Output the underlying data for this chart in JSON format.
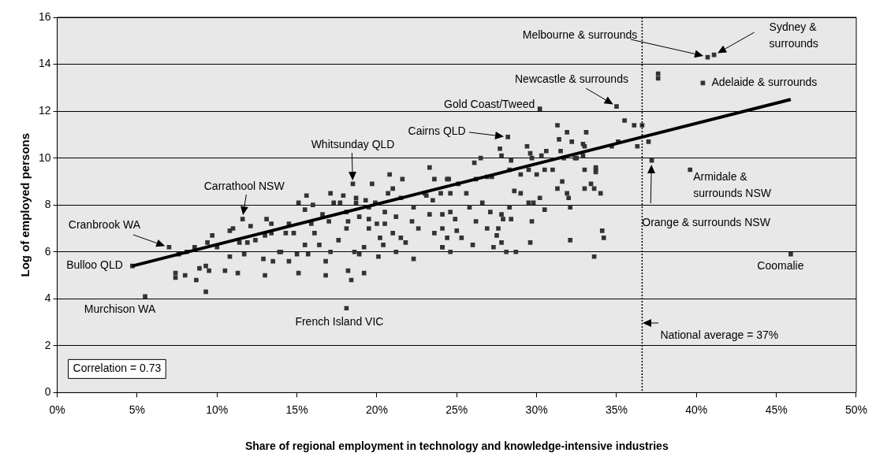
{
  "chart_data": {
    "type": "scatter",
    "xlabel": "Share of regional employment in technology and knowledge-intensive industries",
    "ylabel": "Log of employed persons",
    "xlim": [
      0,
      50
    ],
    "ylim": [
      0,
      16
    ],
    "xticks": [
      {
        "value": 0,
        "label": "0%"
      },
      {
        "value": 5,
        "label": "5%"
      },
      {
        "value": 10,
        "label": "10%"
      },
      {
        "value": 15,
        "label": "15%"
      },
      {
        "value": 20,
        "label": "20%"
      },
      {
        "value": 25,
        "label": "25%"
      },
      {
        "value": 30,
        "label": "30%"
      },
      {
        "value": 35,
        "label": "35%"
      },
      {
        "value": 40,
        "label": "40%"
      },
      {
        "value": 45,
        "label": "45%"
      },
      {
        "value": 50,
        "label": "50%"
      }
    ],
    "yticks": [
      0,
      2,
      4,
      6,
      8,
      10,
      12,
      14,
      16
    ],
    "grid": "y",
    "legend": false,
    "marker": "square",
    "series": [
      {
        "type": "scatter",
        "color": "#333333",
        "x": [
          4.7,
          5.5,
          7.0,
          11.6,
          18.5,
          18.1,
          28.2,
          30.2,
          35.0,
          40.7,
          41.1,
          40.4,
          37.6,
          37.6,
          39.6,
          37.2,
          45.9,
          36.1,
          36.6,
          35.5,
          36.3,
          37.0,
          35.1,
          34.7,
          7.6,
          8.1,
          8.6,
          9.4,
          9.7,
          10.0,
          10.8,
          11.0,
          12.1,
          13.1,
          13.4,
          13.4,
          11.4,
          11.9,
          12.4,
          13.0,
          10.8,
          11.7,
          12.9,
          13.5,
          13.9,
          7.4,
          7.4,
          8.0,
          8.7,
          8.9,
          9.3,
          9.5,
          9.3,
          10.5,
          11.3,
          13.0,
          14.5,
          15.1,
          15.6,
          16.0,
          15.5,
          14.3,
          14.8,
          14.5,
          14.0,
          15.0,
          15.7,
          15.5,
          15.1,
          16.4,
          16.8,
          17.1,
          16.8,
          17.1,
          17.3,
          16.6,
          17.0,
          15.9,
          16.1,
          17.6,
          17.9,
          17.7,
          18.1,
          18.2,
          18.1,
          18.2,
          18.4,
          19.2,
          18.9,
          18.6,
          19.2,
          18.7,
          18.7,
          19.3,
          19.7,
          19.9,
          19.5,
          18.9,
          19.5,
          20.0,
          19.5,
          20.2,
          20.1,
          20.8,
          21.0,
          20.7,
          21.6,
          21.5,
          20.5,
          21.2,
          20.5,
          21.0,
          21.5,
          20.4,
          21.2,
          22.3,
          22.3,
          22.2,
          22.6,
          21.8,
          23.3,
          23.6,
          23.0,
          23.5,
          24.0,
          24.4,
          23.3,
          24.1,
          23.6,
          24.1,
          24.6,
          24.4,
          24.9,
          24.6,
          23.1,
          24.5,
          25.1,
          25.6,
          26.2,
          26.1,
          26.5,
          26.9,
          27.2,
          27.7,
          27.8,
          28.4,
          28.3,
          29.0,
          29.4,
          29.6,
          29.7,
          30.3,
          30.6,
          29.5,
          30.0,
          30.5,
          31.0,
          31.3,
          31.4,
          31.5,
          31.9,
          32.2,
          31.7,
          32.4,
          33.1,
          33.0,
          32.9,
          33.0,
          33.7,
          31.6,
          31.3,
          31.9,
          32.0,
          32.1,
          33.0,
          33.4,
          33.6,
          34.0,
          30.5,
          30.2,
          29.8,
          29.5,
          29.0,
          28.6,
          28.3,
          28.4,
          27.8,
          27.9,
          27.1,
          27.6,
          27.5,
          26.9,
          29.7,
          29.6,
          32.1,
          34.1,
          34.2,
          33.6,
          28.1,
          28.7,
          27.8,
          27.3,
          26.0,
          25.3,
          24.1,
          25.0,
          26.2,
          24.1,
          25.8,
          26.6,
          24.6,
          32.9,
          33.7,
          33.7,
          32.5
        ],
        "values": [
          5.4,
          4.1,
          6.2,
          7.4,
          8.9,
          3.6,
          10.9,
          12.1,
          12.2,
          14.3,
          14.4,
          13.2,
          13.6,
          13.4,
          9.5,
          9.9,
          5.9,
          11.4,
          11.4,
          11.6,
          10.5,
          10.7,
          10.7,
          10.5,
          5.9,
          6.0,
          6.2,
          6.4,
          6.7,
          6.2,
          6.9,
          7.0,
          7.1,
          7.4,
          7.2,
          6.8,
          6.4,
          6.4,
          6.5,
          6.7,
          5.8,
          5.9,
          5.7,
          5.6,
          6.0,
          5.1,
          4.9,
          5.0,
          4.8,
          5.3,
          5.4,
          5.2,
          4.3,
          5.2,
          5.1,
          5.0,
          7.2,
          8.1,
          8.4,
          8.0,
          7.8,
          6.8,
          6.8,
          5.6,
          6.0,
          5.9,
          5.9,
          6.3,
          5.1,
          6.3,
          5.6,
          6.0,
          5.0,
          8.5,
          8.1,
          7.6,
          7.3,
          7.2,
          6.8,
          6.5,
          8.4,
          8.1,
          7.7,
          7.3,
          7.0,
          5.2,
          4.8,
          5.1,
          5.9,
          6.0,
          6.2,
          8.3,
          8.1,
          8.2,
          8.9,
          8.1,
          7.9,
          7.5,
          7.4,
          7.2,
          7.0,
          6.6,
          5.8,
          9.3,
          8.7,
          8.5,
          9.1,
          8.3,
          7.7,
          7.5,
          7.2,
          6.8,
          6.6,
          6.3,
          6.0,
          5.7,
          7.9,
          7.3,
          7.0,
          6.4,
          9.6,
          9.1,
          8.5,
          8.2,
          8.5,
          9.1,
          7.6,
          7.6,
          6.8,
          6.2,
          6.0,
          6.6,
          7.4,
          8.5,
          8.4,
          9.1,
          8.9,
          8.5,
          9.1,
          9.8,
          10.0,
          9.2,
          9.2,
          10.4,
          10.1,
          9.9,
          9.5,
          9.3,
          10.5,
          10.2,
          10.0,
          10.1,
          10.3,
          9.5,
          9.3,
          9.5,
          9.5,
          11.4,
          10.8,
          10.3,
          11.1,
          10.7,
          10.0,
          10.0,
          11.1,
          10.5,
          10.1,
          9.5,
          9.5,
          9.0,
          8.7,
          8.5,
          8.3,
          7.9,
          8.7,
          8.9,
          8.7,
          8.5,
          7.8,
          8.3,
          8.1,
          8.1,
          8.5,
          8.6,
          7.9,
          7.4,
          7.6,
          7.4,
          7.7,
          7.0,
          6.7,
          7.0,
          7.3,
          6.4,
          6.5,
          6.9,
          6.6,
          5.8,
          6.0,
          6.0,
          6.4,
          6.2,
          6.3,
          6.6,
          6.2,
          6.9,
          7.3,
          7.0,
          7.9,
          8.1,
          7.7,
          10.6,
          9.6,
          9.4,
          10.0
        ]
      },
      {
        "type": "line",
        "color": "#000000",
        "marker": "none",
        "x": [
          4.7,
          45.9
        ],
        "values": [
          5.4,
          12.5
        ]
      }
    ],
    "ref_lines": [
      {
        "axis": "x",
        "value": 36.6,
        "label": "National average = 37%",
        "color": "#000000",
        "line_style": "dotted"
      }
    ],
    "annotations": [
      {
        "text": "Adelaide & surrounds",
        "x": 40.4,
        "y": 13.2
      },
      {
        "text": "Newcastle & surrounds",
        "x": 35.0,
        "y": 12.2
      },
      {
        "text": "Gold Coast/Tweed",
        "x": 30.2,
        "y": 12.1
      },
      {
        "text": "Carrathool NSW",
        "x": 11.6,
        "y": 7.4
      },
      {
        "text": "Cranbrook WA",
        "x": 7.0,
        "y": 6.2
      },
      {
        "text": "Bulloo QLD",
        "x": 4.7,
        "y": 5.4
      },
      {
        "text": "Murchison WA",
        "x": 5.5,
        "y": 4.1
      },
      {
        "text": "French Island VIC",
        "x": 18.1,
        "y": 3.6
      },
      {
        "text": "Armidale & surrounds NSW",
        "x": 39.6,
        "y": 9.5
      },
      {
        "text": "Coomalie",
        "x": 45.9,
        "y": 5.9
      },
      "Melbourne & surrounds",
      "Sydney & surrounds",
      "Cairns QLD",
      "Whitsunday QLD",
      "Orange & surrounds NSW",
      "Correlation = 0.73"
    ]
  }
}
